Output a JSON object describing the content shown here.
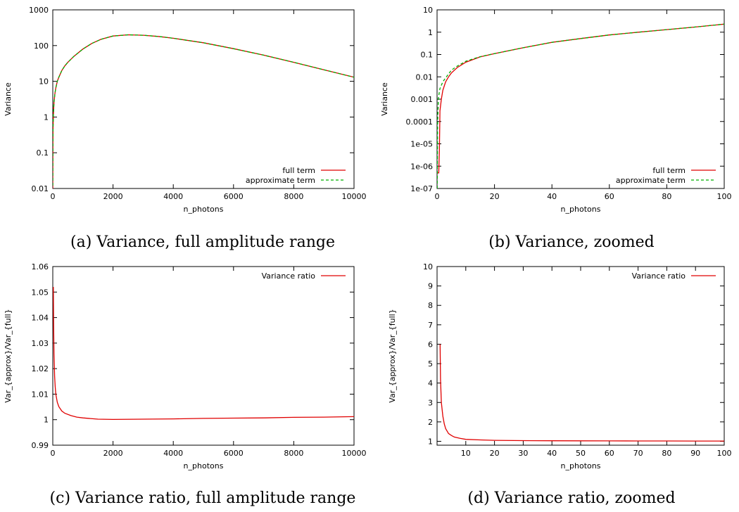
{
  "captions": {
    "a": "(a) Variance, full amplitude range",
    "b": "(b) Variance, zoomed",
    "c": "(c) Variance ratio, full amplitude range",
    "d": "(d) Variance ratio, zoomed"
  },
  "chart_data": [
    {
      "type": "line",
      "xlabel": "n_photons",
      "ylabel": "Variance",
      "xscale": "linear",
      "yscale": "log",
      "xlim": [
        0,
        10000
      ],
      "ylim": [
        0.01,
        1000
      ],
      "xticks": [
        "0",
        "2000",
        "4000",
        "6000",
        "8000",
        "10000"
      ],
      "yticks": [
        "0.01",
        "0.1",
        "1",
        "10",
        "100",
        "1000"
      ],
      "legend": "bottom-right",
      "series": [
        {
          "name": "full term",
          "color": "#e00000",
          "dash": "solid",
          "x": [
            0.6,
            2,
            5,
            10,
            20,
            40,
            70,
            100,
            150,
            200,
            300,
            400,
            500,
            700,
            1000,
            1300,
            1600,
            2000,
            2500,
            3000,
            3500,
            4000,
            5000,
            6000,
            7000,
            8000,
            9000,
            10000
          ],
          "y": [
            0.01,
            0.05,
            0.2,
            0.5,
            1.2,
            2.5,
            4.5,
            6.5,
            10,
            13,
            20,
            27,
            34,
            50,
            80,
            115,
            150,
            185,
            200,
            195,
            180,
            160,
            120,
            82,
            54,
            34,
            21,
            13
          ]
        },
        {
          "name": "approximate term",
          "color": "#00b000",
          "dash": "dashed",
          "x": [
            0.6,
            2,
            5,
            10,
            20,
            40,
            70,
            100,
            150,
            200,
            300,
            400,
            500,
            700,
            1000,
            1300,
            1600,
            2000,
            2500,
            3000,
            3500,
            4000,
            5000,
            6000,
            7000,
            8000,
            9000,
            10000
          ],
          "y": [
            0.012,
            0.055,
            0.21,
            0.51,
            1.22,
            2.52,
            4.52,
            6.52,
            10,
            13,
            20,
            27,
            34,
            50,
            80,
            115,
            150,
            185,
            200,
            195,
            180,
            160,
            120,
            82,
            54,
            34,
            21,
            13
          ]
        }
      ]
    },
    {
      "type": "line",
      "xlabel": "n_photons",
      "ylabel": "Variance",
      "xscale": "linear",
      "yscale": "log",
      "xlim": [
        0,
        100
      ],
      "ylim": [
        1e-07,
        10
      ],
      "xticks": [
        "0",
        "20",
        "40",
        "60",
        "80",
        "100"
      ],
      "yticks": [
        "1e-07",
        "1e-06",
        "1e-05",
        "0.0001",
        "0.001",
        "0.01",
        "0.1",
        "1",
        "10"
      ],
      "legend": "bottom-right",
      "series": [
        {
          "name": "full term",
          "color": "#e00000",
          "dash": "solid",
          "x": [
            0.05,
            0.6,
            0.8,
            1,
            1.5,
            2,
            3,
            4,
            5,
            7,
            10,
            15,
            20,
            30,
            40,
            50,
            60,
            70,
            80,
            90,
            100
          ],
          "y": [
            5e-07,
            5e-07,
            5e-06,
            0.0003,
            0.001,
            0.0025,
            0.006,
            0.01,
            0.015,
            0.026,
            0.045,
            0.078,
            0.11,
            0.2,
            0.35,
            0.52,
            0.75,
            1.0,
            1.3,
            1.7,
            2.3
          ]
        },
        {
          "name": "approximate term",
          "color": "#00b000",
          "dash": "dashed",
          "x": [
            0.05,
            0.2,
            0.5,
            1,
            2,
            3,
            5,
            7,
            10,
            15,
            20,
            30,
            40,
            50,
            60,
            70,
            80,
            90,
            100
          ],
          "y": [
            1e-07,
            0.0001,
            0.0012,
            0.003,
            0.006,
            0.009,
            0.02,
            0.03,
            0.05,
            0.08,
            0.11,
            0.2,
            0.35,
            0.52,
            0.75,
            1.0,
            1.3,
            1.7,
            2.3
          ]
        }
      ]
    },
    {
      "type": "line",
      "xlabel": "n_photons",
      "ylabel": "Var_{approx}/Var_{full}",
      "xscale": "linear",
      "yscale": "linear",
      "xlim": [
        0,
        10000
      ],
      "ylim": [
        0.99,
        1.06
      ],
      "xticks": [
        "0",
        "2000",
        "4000",
        "6000",
        "8000",
        "10000"
      ],
      "yticks": [
        "0.99",
        "1",
        "1.01",
        "1.02",
        "1.03",
        "1.04",
        "1.05",
        "1.06"
      ],
      "legend": "top-right",
      "series": [
        {
          "name": "Variance ratio",
          "color": "#e00000",
          "dash": "solid",
          "x": [
            18,
            25,
            40,
            60,
            80,
            100,
            150,
            200,
            300,
            400,
            600,
            800,
            1000,
            1500,
            2000,
            3000,
            4000,
            5000,
            6000,
            7000,
            8000,
            9000,
            10000
          ],
          "y": [
            1.052,
            1.04,
            1.026,
            1.017,
            1.013,
            1.01,
            1.0068,
            1.0051,
            1.0034,
            1.0025,
            1.0016,
            1.001,
            1.0007,
            1.0002,
            1.0001,
            1.0002,
            1.0003,
            1.0005,
            1.0006,
            1.0007,
            1.0009,
            1.001,
            1.0012
          ]
        }
      ]
    },
    {
      "type": "line",
      "xlabel": "n_photons",
      "ylabel": "Var_{approx}/Var_{full}",
      "xscale": "linear",
      "yscale": "linear",
      "xlim": [
        0,
        100
      ],
      "ylim": [
        0.8,
        10
      ],
      "xticks": [
        "10",
        "20",
        "30",
        "40",
        "50",
        "60",
        "70",
        "80",
        "90",
        "100"
      ],
      "yticks": [
        "1",
        "2",
        "3",
        "4",
        "5",
        "6",
        "7",
        "8",
        "9",
        "10"
      ],
      "legend": "top-right",
      "series": [
        {
          "name": "Variance ratio",
          "color": "#e00000",
          "dash": "solid",
          "x": [
            1.05,
            1.2,
            1.5,
            2,
            2.5,
            3,
            4,
            5,
            6,
            8,
            10,
            15,
            20,
            30,
            40,
            50,
            60,
            70,
            80,
            90,
            100
          ],
          "y": [
            6.0,
            4.2,
            3.0,
            2.3,
            1.9,
            1.65,
            1.4,
            1.3,
            1.22,
            1.15,
            1.1,
            1.07,
            1.05,
            1.035,
            1.028,
            1.024,
            1.02,
            1.018,
            1.016,
            1.015,
            1.014
          ]
        }
      ]
    }
  ]
}
